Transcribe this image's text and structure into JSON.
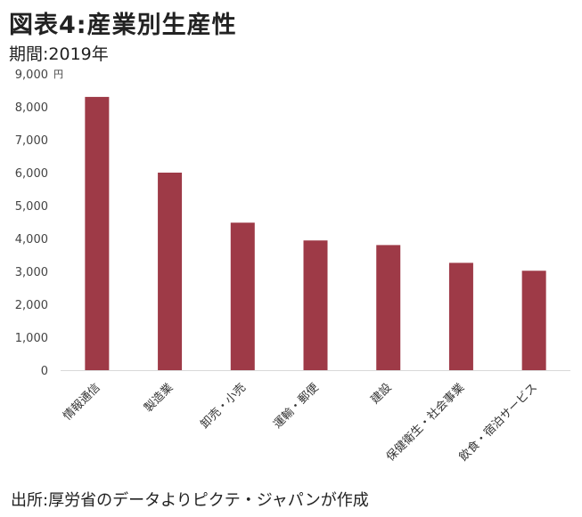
{
  "header": {
    "title": "図表4:産業別生産性",
    "subtitle": "期間:2019年"
  },
  "footer": {
    "source": "出所:厚労省のデータよりピクテ・ジャパンが作成"
  },
  "chart_data": {
    "type": "bar",
    "title": "図表4:産業別生産性",
    "subtitle": "期間:2019年",
    "ylabel": "円",
    "categories": [
      "情報通信",
      "製造業",
      "卸売・小売",
      "運輸・郵便",
      "建設",
      "保健衛生・社会事業",
      "飲食・宿泊サービス"
    ],
    "values": [
      8300,
      6000,
      4480,
      3940,
      3800,
      3260,
      3020
    ],
    "ylim": [
      0,
      9000
    ],
    "yticks": [
      0,
      1000,
      2000,
      3000,
      4000,
      5000,
      6000,
      7000,
      8000,
      9000
    ],
    "ytick_labels": [
      "0",
      "1,000",
      "2,000",
      "3,000",
      "4,000",
      "5,000",
      "6,000",
      "7,000",
      "8,000",
      "9,000"
    ],
    "bar_color": "#9e3a47",
    "grid": false,
    "legend": "none"
  }
}
